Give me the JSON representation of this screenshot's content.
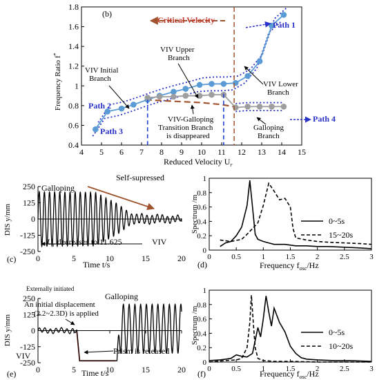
{
  "figure": {
    "panel_labels": {
      "b": "(b)",
      "c": "(c)",
      "d": "(d)",
      "e": "(e)",
      "f": "(f)"
    }
  },
  "chart_data": [
    {
      "id": "b",
      "type": "line",
      "xlabel": "Reduced Velocity U",
      "xlabel_sub": "r",
      "ylabel": "Frequency Ratio f",
      "ylabel_sup": "*",
      "xlim": [
        4,
        15
      ],
      "ylim": [
        0.4,
        1.8
      ],
      "xticks": [
        4,
        5,
        6,
        7,
        8,
        9,
        10,
        11,
        12,
        13,
        14,
        15
      ],
      "yticks": [
        0.4,
        0.6,
        0.8,
        1.0,
        1.2,
        1.4,
        1.6,
        1.8
      ],
      "ytick_labels": [
        "0.4",
        "0.6",
        "0.8",
        "1",
        "1.2",
        "1.4",
        "1.6",
        "1.8"
      ],
      "series": [
        {
          "color": "#5b9bd5",
          "x": [
            4.7,
            5.3,
            6.0,
            6.6,
            7.3,
            7.9,
            8.6,
            9.2,
            9.9,
            10.5,
            11.1,
            11.7,
            12.3,
            12.9,
            13.5,
            14.1
          ],
          "y": [
            0.56,
            0.74,
            0.77,
            0.81,
            0.86,
            0.9,
            0.94,
            0.97,
            1.01,
            1.02,
            1.02,
            1.03,
            1.1,
            1.25,
            1.61,
            1.72
          ]
        },
        {
          "color": "#9e9e9e",
          "x": [
            7.3,
            7.9,
            8.6,
            9.2,
            9.9,
            10.5,
            11.1,
            11.7,
            12.3,
            12.9,
            13.5,
            14.1
          ],
          "y": [
            0.88,
            0.89,
            0.89,
            0.9,
            0.9,
            0.91,
            0.91,
            0.78,
            0.79,
            0.79,
            0.79,
            0.79
          ]
        }
      ],
      "critical_velocity": {
        "label": "Critical Velocity",
        "x": 11.625,
        "color": "#a0522d"
      },
      "transition_curve": {
        "color": "#a0522d",
        "x": [
          7.2,
          8,
          9,
          10,
          11,
          11.6
        ],
        "y": [
          0.86,
          0.85,
          0.84,
          0.83,
          0.81,
          0.79
        ]
      },
      "annotations": [
        {
          "text": "VIV Initial",
          "text2": "Branch"
        },
        {
          "text": "VIV Upper",
          "text2": "Branch"
        },
        {
          "text": "VIV Lower",
          "text2": "Branch"
        },
        {
          "text": "VIV-Galloping",
          "text2": "Transition Branch",
          "text3": "is disappeared"
        },
        {
          "text": "Galloping",
          "text2": "Branch"
        }
      ],
      "path_labels": [
        "Path 1",
        "Path 2",
        "Path 3",
        "Path 4"
      ],
      "path_color": "#2a32c8"
    },
    {
      "id": "c",
      "type": "line",
      "xlabel": "Time t/s",
      "ylabel": "DIS y/mm",
      "xlim": [
        0,
        20
      ],
      "ylim": [
        -250,
        250
      ],
      "xticks": [
        0,
        5,
        10,
        15,
        20
      ],
      "yticks": [
        -250,
        -125,
        0,
        125,
        250
      ],
      "signal": {
        "segments": [
          {
            "t0": 0,
            "t1": 8,
            "amp": [
              210,
              205
            ],
            "freq": 1.0
          },
          {
            "t0": 8,
            "t1": 11,
            "amp": [
              205,
              120
            ],
            "freq": 1.0
          },
          {
            "t0": 11,
            "t1": 13,
            "amp": [
              120,
              40
            ],
            "freq": 1.0
          },
          {
            "t0": 13,
            "t1": 20,
            "amp": [
              40,
              22
            ],
            "freq": 1.0
          }
        ]
      },
      "annotations": [
        {
          "text": "Galloping"
        },
        {
          "text": "Self-supressed"
        },
        {
          "text": "U",
          "sub": "r",
          "rest": " decreases to 11.625"
        },
        {
          "text": "VIV"
        }
      ]
    },
    {
      "id": "d",
      "type": "line",
      "xlabel": "Frequency f",
      "xlabel_sub": "osc",
      "xlabel_end": "/Hz",
      "ylabel": "Spectrum /m",
      "xlim": [
        0,
        3
      ],
      "ylim": [
        0,
        1
      ],
      "xticks": [
        0,
        0.5,
        1,
        1.5,
        2,
        2.5,
        3
      ],
      "yticks": [
        0,
        0.2,
        0.4,
        0.6,
        0.8,
        1
      ],
      "xtick_labels": [
        "0",
        "0.5",
        "1",
        "1.5",
        "2",
        "2.5",
        "3"
      ],
      "ytick_labels": [
        "0",
        "0.2",
        "0.4",
        "0.6",
        "0.8",
        "1"
      ],
      "series": [
        {
          "name": "0~5s",
          "dash": "solid",
          "x": [
            0.2,
            0.3,
            0.4,
            0.5,
            0.6,
            0.7,
            0.75,
            0.8,
            0.85,
            0.9,
            1.0,
            1.1,
            1.2,
            1.4,
            1.6,
            1.8,
            2.0,
            2.2,
            2.5,
            2.8,
            3.0
          ],
          "y": [
            0.05,
            0.1,
            0.12,
            0.2,
            0.32,
            0.62,
            0.97,
            0.6,
            0.22,
            0.15,
            0.12,
            0.1,
            0.08,
            0.08,
            0.06,
            0.06,
            0.05,
            0.05,
            0.04,
            0.03,
            0.02
          ]
        },
        {
          "name": "15~20s",
          "dash": "dashed",
          "x": [
            0.2,
            0.4,
            0.6,
            0.7,
            0.8,
            0.9,
            1.0,
            1.1,
            1.2,
            1.3,
            1.4,
            1.5,
            1.55,
            1.6,
            1.8,
            2.0,
            2.2,
            2.5,
            2.8,
            3.0
          ],
          "y": [
            0.14,
            0.12,
            0.15,
            0.22,
            0.3,
            0.38,
            0.62,
            0.93,
            0.82,
            0.7,
            0.72,
            0.6,
            0.3,
            0.17,
            0.14,
            0.12,
            0.11,
            0.1,
            0.09,
            0.08
          ]
        }
      ]
    },
    {
      "id": "e",
      "type": "line",
      "xlabel": "Time t/s",
      "ylabel": "DIS y/mm",
      "xlim": [
        0,
        20
      ],
      "ylim": [
        -250,
        250
      ],
      "xticks": [
        0,
        5,
        10,
        15,
        20
      ],
      "yticks": [
        -250,
        -125,
        0,
        125,
        250
      ],
      "signal": {
        "viv": {
          "t0": 0,
          "t1": 5.4,
          "amp": 18,
          "freq": 1.0
        },
        "held": {
          "t0": 5.8,
          "t1": 10.8,
          "value": -235
        },
        "gallop": {
          "t0": 11.0,
          "t1": 20,
          "amp": 190,
          "center": 15,
          "freq": 1.0
        }
      },
      "annotations": [
        {
          "text": "Externally initiated"
        },
        {
          "text": "Galloping"
        },
        {
          "text": "An initial displacement",
          "text2": "(2.2~2.3D) is applied"
        },
        {
          "text": "VIV"
        },
        {
          "text": "Prism is released"
        }
      ]
    },
    {
      "id": "f",
      "type": "line",
      "xlabel": "Frequency f",
      "xlabel_sub": "osc",
      "xlabel_end": "/Hz",
      "ylabel": "Spectrum /m",
      "xlim": [
        0,
        3
      ],
      "ylim": [
        0,
        1
      ],
      "xticks": [
        0,
        0.5,
        1,
        1.5,
        2,
        2.5,
        3
      ],
      "yticks": [
        0,
        0.2,
        0.4,
        0.6,
        0.8,
        1
      ],
      "xtick_labels": [
        "0",
        "0.5",
        "1",
        "1.5",
        "2",
        "2.5",
        "3"
      ],
      "ytick_labels": [
        "0",
        "0.2",
        "0.4",
        "0.6",
        "0.8",
        "1"
      ],
      "series": [
        {
          "name": "0~5s",
          "dash": "solid",
          "x": [
            0.0,
            0.2,
            0.4,
            0.5,
            0.6,
            0.7,
            0.8,
            0.85,
            0.9,
            0.95,
            1.0,
            1.05,
            1.1,
            1.15,
            1.2,
            1.3,
            1.4,
            1.5,
            1.6,
            1.7,
            1.8,
            2.0,
            2.3,
            2.6,
            3.0
          ],
          "y": [
            0.02,
            0.03,
            0.05,
            0.1,
            0.08,
            0.07,
            0.12,
            0.3,
            0.48,
            0.35,
            0.6,
            0.92,
            0.7,
            0.5,
            0.75,
            0.55,
            0.42,
            0.22,
            0.12,
            0.06,
            0.04,
            0.03,
            0.02,
            0.02,
            0.01
          ]
        },
        {
          "name": "10~20s",
          "dash": "dashed",
          "x": [
            0.0,
            0.3,
            0.5,
            0.6,
            0.7,
            0.75,
            0.78,
            0.82,
            0.85,
            0.9,
            1.0,
            1.2,
            1.5,
            2.0,
            2.5,
            3.0
          ],
          "y": [
            0.0,
            0.02,
            0.03,
            0.05,
            0.2,
            0.55,
            0.93,
            0.5,
            0.2,
            0.05,
            0.02,
            0.01,
            0.01,
            0.0,
            0.0,
            0.0
          ]
        }
      ]
    }
  ]
}
